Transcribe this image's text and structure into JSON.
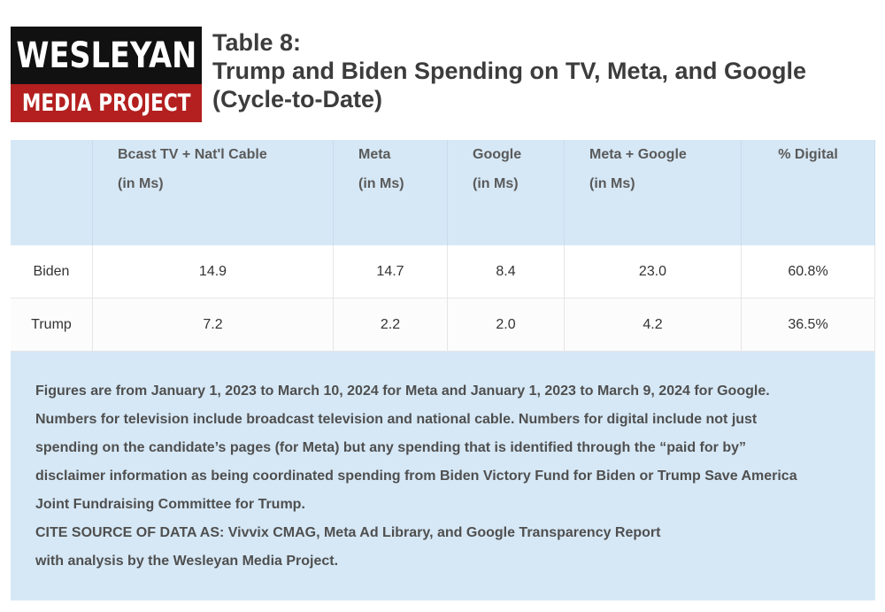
{
  "logo": {
    "top_text": "WESLEYAN",
    "bottom_text": "MEDIA PROJECT",
    "top_color": "#111111",
    "bottom_color": "#b3201f"
  },
  "title": {
    "line1": "Table 8:",
    "line2": "Trump and Biden Spending on TV, Meta, and Google",
    "line3": "(Cycle-to-Date)"
  },
  "table": {
    "headers": [
      {
        "line1": "",
        "line2": ""
      },
      {
        "line1": "Bcast TV + Nat'l Cable",
        "line2": "(in Ms)"
      },
      {
        "line1": "Meta",
        "line2": "(in Ms)"
      },
      {
        "line1": "Google",
        "line2": "(in Ms)"
      },
      {
        "line1": "Meta + Google",
        "line2": "(in Ms)"
      },
      {
        "line1": "% Digital",
        "line2": ""
      }
    ],
    "rows": [
      {
        "label": "Biden",
        "tv": "14.9",
        "meta": "14.7",
        "google": "8.4",
        "meta_google": "23.0",
        "pct_digital": "60.8%"
      },
      {
        "label": "Trump",
        "tv": "7.2",
        "meta": "2.2",
        "google": "2.0",
        "meta_google": "4.2",
        "pct_digital": "36.5%"
      }
    ],
    "header_bg": "#d6e8f6"
  },
  "notes": {
    "lines": [
      "Figures are from January 1, 2023 to March 10, 2024 for Meta and January 1, 2023 to March 9, 2024 for Google.",
      "Numbers for television include broadcast television and national cable. Numbers for digital include not just",
      "spending on the candidate’s pages (for Meta) but any spending that is identified through the “paid for by”",
      "disclaimer information as being coordinated spending from Biden Victory Fund for Biden or Trump Save America",
      "Joint Fundraising Committee for Trump.",
      "CITE SOURCE OF DATA AS: Vivvix CMAG, Meta Ad Library, and Google Transparency Report",
      "with analysis by the Wesleyan Media Project."
    ]
  }
}
